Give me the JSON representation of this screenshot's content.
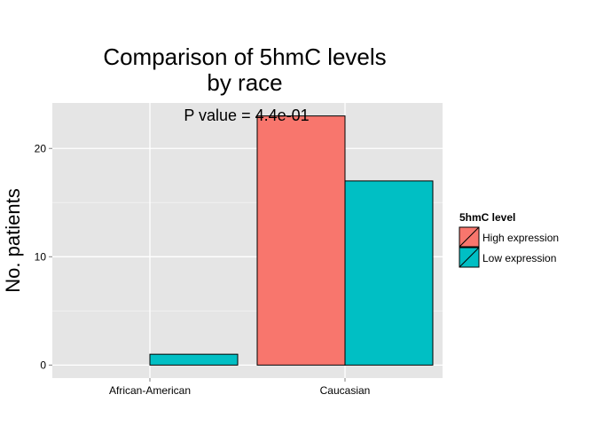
{
  "chart_data": {
    "type": "bar",
    "title_lines": [
      "Comparison of 5hmC levels",
      "by race"
    ],
    "annotation": "P value = 4.4e-01",
    "xlabel": "",
    "ylabel": "No. patients",
    "categories": [
      "African-American",
      "Caucasian"
    ],
    "series": [
      {
        "name": "High expression",
        "color": "#F8766D",
        "values": [
          0,
          23
        ]
      },
      {
        "name": "Low expression",
        "color": "#00BFC4",
        "values": [
          1,
          17
        ]
      }
    ],
    "ylim": [
      -1.2,
      24.2
    ],
    "yticks": [
      0,
      10,
      20
    ],
    "grid": true,
    "legend": {
      "title": "5hmC level",
      "position": "right"
    }
  }
}
